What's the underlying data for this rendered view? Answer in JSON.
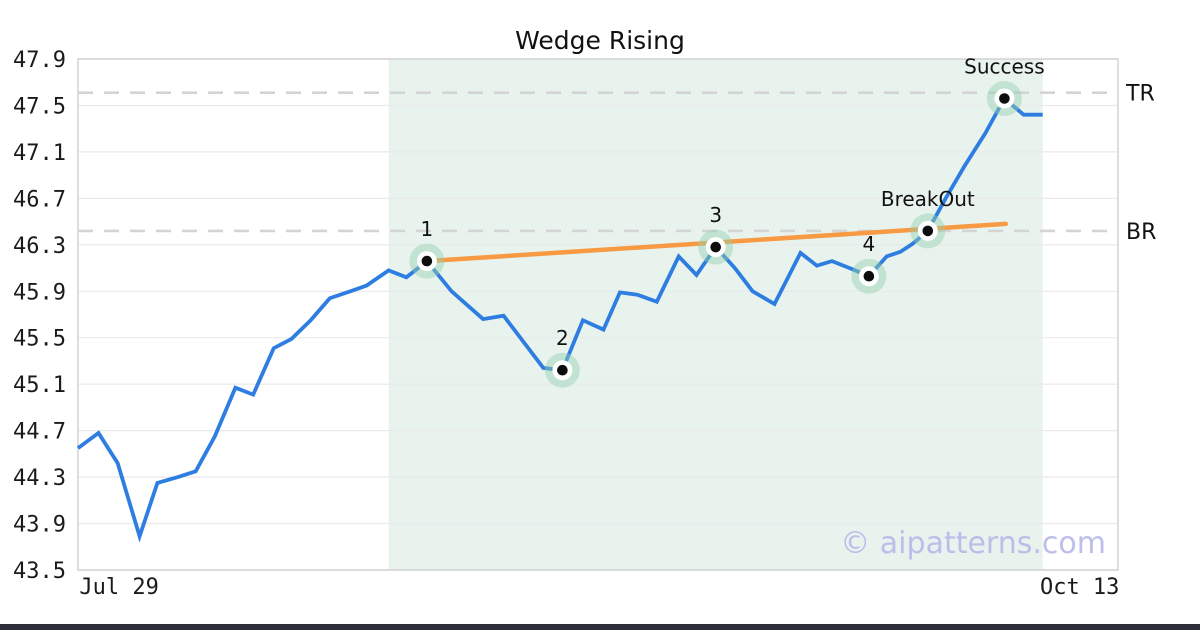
{
  "title": "Wedge Rising",
  "watermark": "© aipatterns.com",
  "colors": {
    "price_line": "#2e7de1",
    "trendline": "#f79a43",
    "pattern_shade": "#e9f3ee",
    "grid": "#e9e9e9",
    "plot_border": "#d5d5d5",
    "dashed_level": "#d4d4d4",
    "marker_halo": "#92d0ac",
    "marker_dot": "#0d0d0d",
    "watermark": "#b9bce9",
    "bottom_bar": "#2e2e3a",
    "text": "#111111"
  },
  "chart_data": {
    "type": "line",
    "title": "Wedge Rising",
    "x_axis": {
      "start_label": "Jul 29",
      "end_label": "Oct 13",
      "span_days": 76,
      "ticks": [
        {
          "label": "Jul 29",
          "day": 3.0
        },
        {
          "label": "Oct 13",
          "day": 73.2
        }
      ]
    },
    "y_axis": {
      "range": [
        43.5,
        47.9
      ],
      "ticks": [
        47.9,
        47.5,
        47.1,
        46.7,
        46.3,
        45.9,
        45.5,
        45.1,
        44.7,
        44.3,
        43.9,
        43.5
      ],
      "grid": true
    },
    "legend": "none",
    "series": [
      {
        "name": "price",
        "points": [
          [
            0.0,
            44.55
          ],
          [
            1.5,
            44.68
          ],
          [
            2.9,
            44.42
          ],
          [
            4.5,
            43.79
          ],
          [
            5.8,
            44.25
          ],
          [
            7.3,
            44.3
          ],
          [
            8.6,
            44.35
          ],
          [
            10.0,
            44.65
          ],
          [
            11.5,
            45.07
          ],
          [
            12.8,
            45.01
          ],
          [
            14.3,
            45.41
          ],
          [
            15.6,
            45.49
          ],
          [
            17.0,
            45.65
          ],
          [
            18.4,
            45.84
          ],
          [
            19.9,
            45.9
          ],
          [
            21.1,
            45.95
          ],
          [
            22.7,
            46.08
          ],
          [
            24.0,
            46.02
          ],
          [
            25.5,
            46.16
          ],
          [
            27.3,
            45.9
          ],
          [
            29.6,
            45.66
          ],
          [
            31.1,
            45.69
          ],
          [
            34.0,
            45.24
          ],
          [
            35.4,
            45.22
          ],
          [
            36.9,
            45.65
          ],
          [
            38.4,
            45.57
          ],
          [
            39.6,
            45.89
          ],
          [
            40.9,
            45.87
          ],
          [
            42.3,
            45.81
          ],
          [
            43.9,
            46.2
          ],
          [
            45.2,
            46.04
          ],
          [
            46.6,
            46.28
          ],
          [
            48.0,
            46.1
          ],
          [
            49.3,
            45.9
          ],
          [
            50.9,
            45.79
          ],
          [
            52.8,
            46.23
          ],
          [
            54.0,
            46.12
          ],
          [
            55.1,
            46.16
          ],
          [
            56.6,
            46.09
          ],
          [
            57.8,
            46.03
          ],
          [
            59.1,
            46.2
          ],
          [
            60.1,
            46.24
          ],
          [
            61.0,
            46.31
          ],
          [
            62.1,
            46.42
          ],
          [
            63.4,
            46.7
          ],
          [
            64.8,
            46.98
          ],
          [
            66.3,
            47.26
          ],
          [
            67.7,
            47.56
          ],
          [
            69.1,
            47.42
          ],
          [
            70.5,
            47.42
          ]
        ]
      }
    ],
    "trendline": {
      "from": [
        25.5,
        46.16
      ],
      "to": [
        67.8,
        46.48
      ]
    },
    "levels": [
      {
        "label": "TR",
        "value": 47.61
      },
      {
        "label": "BR",
        "value": 46.42
      }
    ],
    "pattern_region": {
      "from_day": 22.7,
      "to_day": 70.5
    },
    "annotations": [
      {
        "label": "1",
        "day": 25.5,
        "value": 46.16
      },
      {
        "label": "2",
        "day": 35.4,
        "value": 45.22
      },
      {
        "label": "3",
        "day": 46.6,
        "value": 46.28
      },
      {
        "label": "4",
        "day": 57.8,
        "value": 46.03
      },
      {
        "label": "BreakOut",
        "day": 62.1,
        "value": 46.42
      },
      {
        "label": "Success",
        "day": 67.7,
        "value": 47.56
      }
    ]
  }
}
